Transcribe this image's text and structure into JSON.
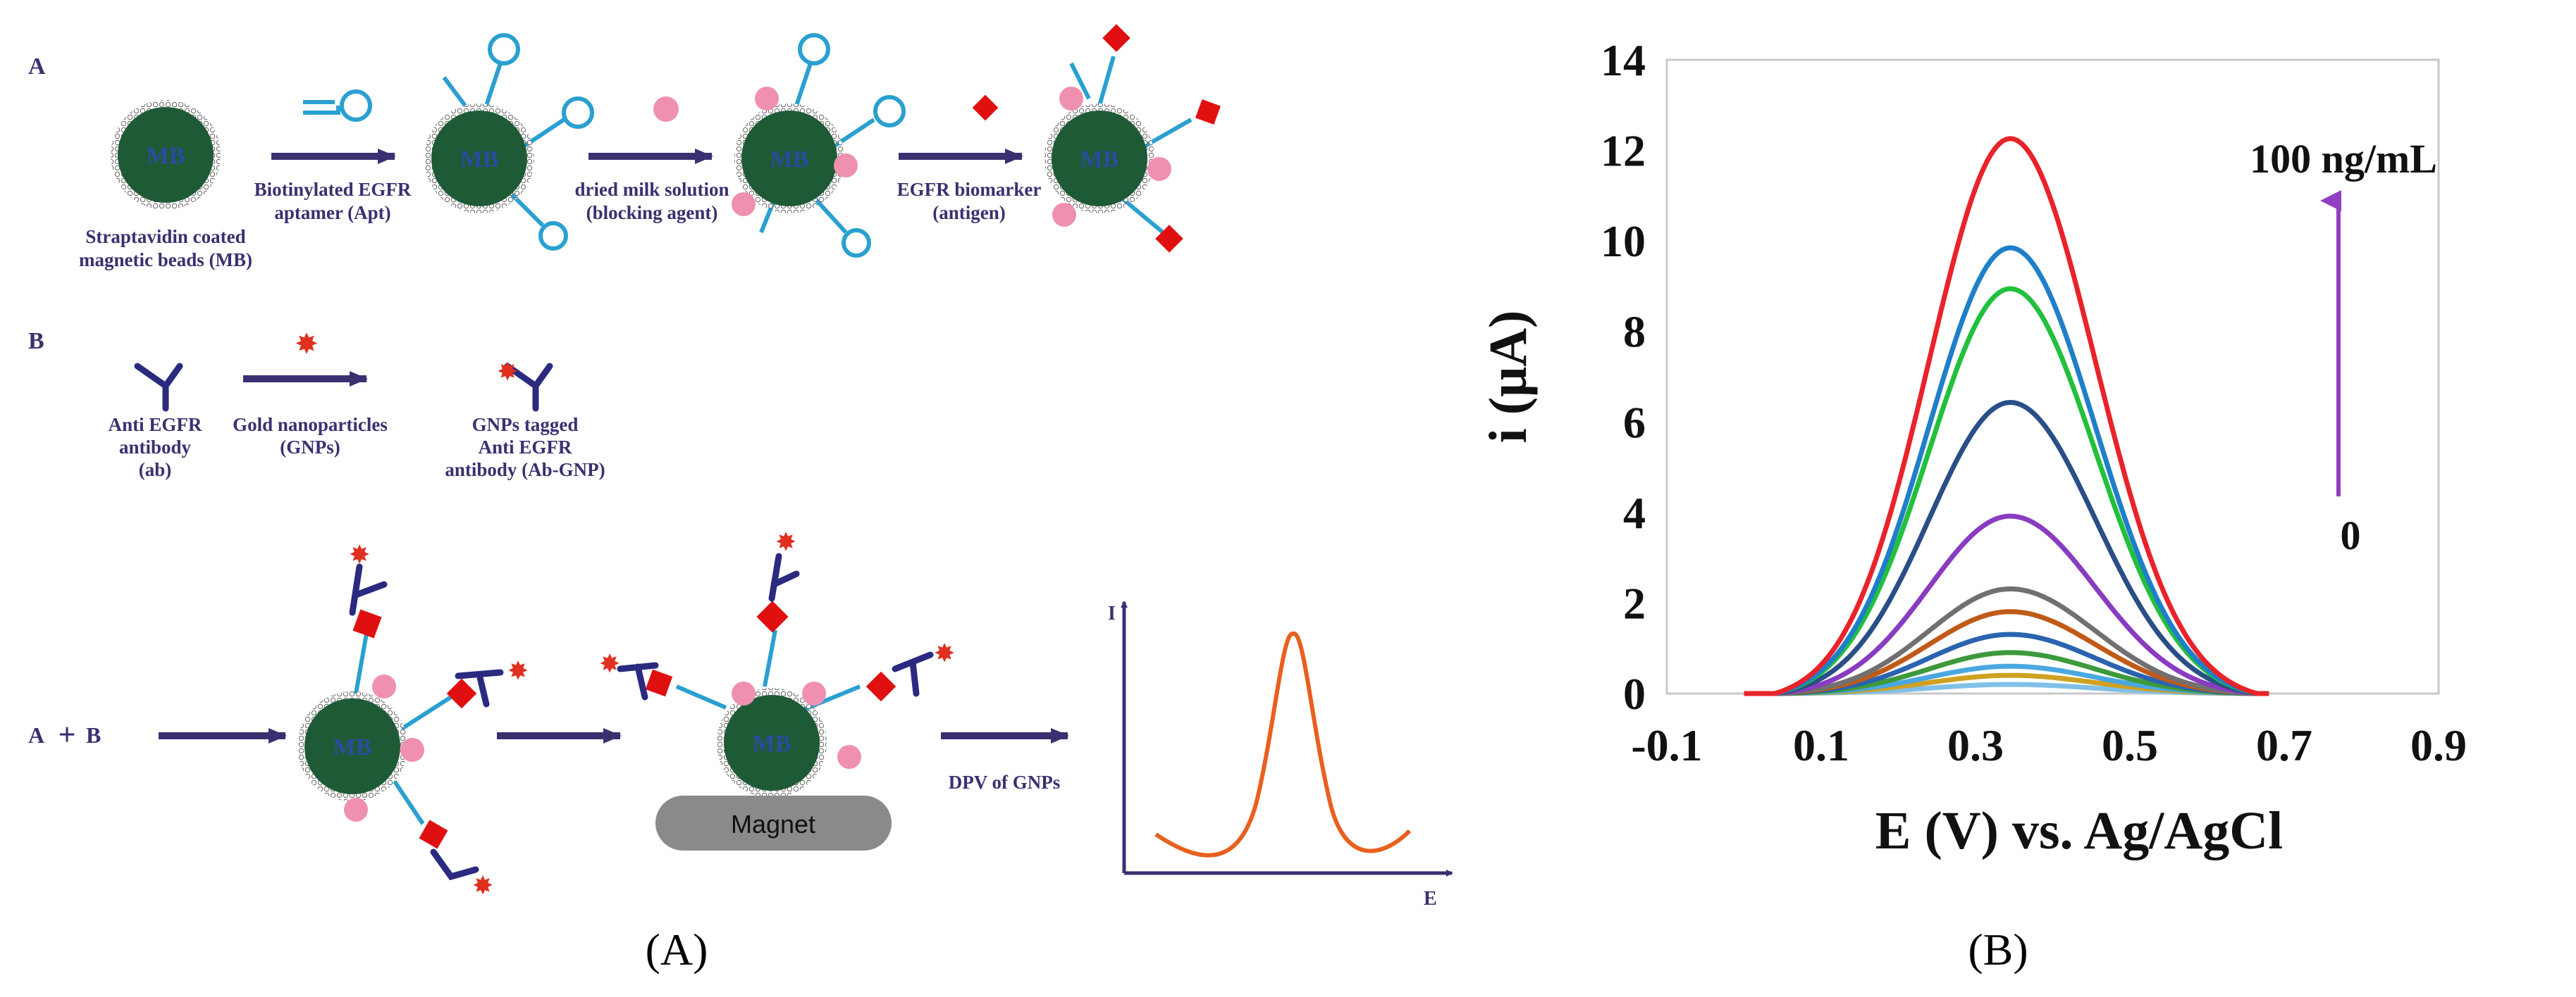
{
  "panelA": {
    "section_a": "A",
    "section_b": "B",
    "step1_label1": "Straptavidin coated",
    "step1_label2": "magnetic beads (MB)",
    "step2_label1": "Biotinylated EGFR",
    "step2_label2": "aptamer (Apt)",
    "step3_label1": "dried milk solution",
    "step3_label2": "(blocking agent)",
    "step4_label1": "EGFR biomarker",
    "step4_label2": "(antigen)",
    "bead_text": "MB",
    "b_antibody1": "Anti EGFR",
    "b_antibody2": "antibody",
    "b_antibody3": "(ab)",
    "b_gnp1": "Gold nanoparticles",
    "b_gnp2": "(GNPs)",
    "b_tag1": "GNPs tagged",
    "b_tag2": "Anti EGFR",
    "b_tag3": "antibody (Ab-GNP)",
    "combine_a": "A",
    "combine_b": "B",
    "magnet_label": "Magnet",
    "dpv_label": "DPV of GNPs",
    "mini_y": "I",
    "mini_x": "E",
    "caption": "(A)"
  },
  "panelB": {
    "caption": "(B)",
    "annotation_top": "100 ng/mL",
    "annotation_bottom": "0"
  },
  "chart_data": {
    "type": "line",
    "xlabel": "E (V) vs. Ag/AgCl",
    "ylabel": "i (μA)",
    "xlim": [
      -0.1,
      0.9
    ],
    "ylim": [
      0,
      14
    ],
    "xticks": [
      "-0.1",
      "0.1",
      "0.3",
      "0.5",
      "0.7",
      "0.9"
    ],
    "yticks": [
      "0",
      "2",
      "4",
      "6",
      "8",
      "10",
      "12",
      "14"
    ],
    "peak_x": 0.345,
    "x_start": 0.0,
    "x_end": 0.68,
    "series": [
      {
        "color": "#e8232a",
        "peak": 12.2
      },
      {
        "color": "#1f7fc8",
        "peak": 9.8
      },
      {
        "color": "#22c03c",
        "peak": 8.9
      },
      {
        "color": "#2a4e86",
        "peak": 6.4
      },
      {
        "color": "#8a3cc0",
        "peak": 3.9
      },
      {
        "color": "#707070",
        "peak": 2.3
      },
      {
        "color": "#c05a18",
        "peak": 1.8
      },
      {
        "color": "#2a63b0",
        "peak": 1.3
      },
      {
        "color": "#3c9a3c",
        "peak": 0.9
      },
      {
        "color": "#4aa8e0",
        "peak": 0.6
      },
      {
        "color": "#d0a020",
        "peak": 0.4
      },
      {
        "color": "#80c0e8",
        "peak": 0.2
      }
    ]
  },
  "colors": {
    "arrow": "#3a3070",
    "bead": "#1f5a36",
    "aptamer": "#2aa0d0",
    "antigen": "#e01010",
    "blocking": "#f090b0",
    "antibody": "#2a2a80",
    "gnp": "#e03020",
    "magnet": "#8a8a8a",
    "annotation_arrow": "#9040c0",
    "mini_peak": "#e86020"
  }
}
